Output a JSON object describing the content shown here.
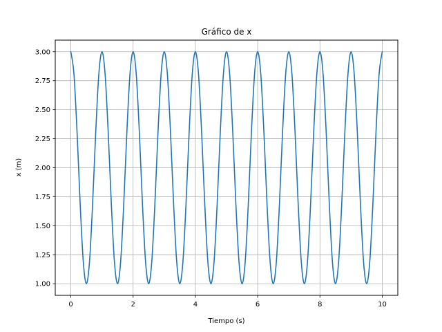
{
  "chart_data": {
    "type": "line",
    "title": "Gráfico de x",
    "xlabel": "Tiempo (s)",
    "ylabel": "x (m)",
    "xlim": [
      -0.5,
      10.5
    ],
    "ylim": [
      0.9,
      3.1
    ],
    "grid": true,
    "x_ticks": [
      0,
      2,
      4,
      6,
      8,
      10
    ],
    "x_tick_labels": [
      "0",
      "2",
      "4",
      "6",
      "8",
      "10"
    ],
    "y_ticks": [
      1.0,
      1.25,
      1.5,
      1.75,
      2.0,
      2.25,
      2.5,
      2.75,
      3.0
    ],
    "y_tick_labels": [
      "1.00",
      "1.25",
      "1.50",
      "1.75",
      "2.00",
      "2.25",
      "2.50",
      "2.75",
      "3.00"
    ],
    "series": [
      {
        "color": "#1f77b4",
        "x": [
          0,
          0.1,
          0.2,
          0.3,
          0.4,
          0.5,
          0.6,
          0.7,
          0.8,
          0.9,
          1.0,
          1.1,
          1.2,
          1.3,
          1.4,
          1.5,
          1.6,
          1.7,
          1.8,
          1.9,
          2.0,
          2.1,
          2.2,
          2.3,
          2.4,
          2.5,
          2.6,
          2.7,
          2.8,
          2.9,
          3.0,
          3.1,
          3.2,
          3.3,
          3.4,
          3.5,
          3.6,
          3.7,
          3.8,
          3.9,
          4.0,
          4.1,
          4.2,
          4.3,
          4.4,
          4.5,
          4.6,
          4.7,
          4.8,
          4.9,
          5.0,
          5.1,
          5.2,
          5.3,
          5.4,
          5.5,
          5.6,
          5.7,
          5.8,
          5.9,
          6.0,
          6.1,
          6.2,
          6.3,
          6.4,
          6.5,
          6.6,
          6.7,
          6.8,
          6.9,
          7.0,
          7.1,
          7.2,
          7.3,
          7.4,
          7.5,
          7.6,
          7.7,
          7.8,
          7.9,
          8.0,
          8.1,
          8.2,
          8.3,
          8.4,
          8.5,
          8.6,
          8.7,
          8.8,
          8.9,
          9.0,
          9.1,
          9.2,
          9.3,
          9.4,
          9.5,
          9.6,
          9.7,
          9.8,
          9.9,
          10.0
        ],
        "y": [
          3.0,
          2.809,
          2.309,
          1.691,
          1.191,
          1.0,
          1.191,
          1.691,
          2.309,
          2.809,
          3.0,
          2.809,
          2.309,
          1.691,
          1.191,
          1.0,
          1.191,
          1.691,
          2.309,
          2.809,
          3.0,
          2.809,
          2.309,
          1.691,
          1.191,
          1.0,
          1.191,
          1.691,
          2.309,
          2.809,
          3.0,
          2.809,
          2.309,
          1.691,
          1.191,
          1.0,
          1.191,
          1.691,
          2.309,
          2.809,
          3.0,
          2.809,
          2.309,
          1.691,
          1.191,
          1.0,
          1.191,
          1.691,
          2.309,
          2.809,
          3.0,
          2.809,
          2.309,
          1.691,
          1.191,
          1.0,
          1.191,
          1.691,
          2.309,
          2.809,
          3.0,
          2.809,
          2.309,
          1.691,
          1.191,
          1.0,
          1.191,
          1.691,
          2.309,
          2.809,
          3.0,
          2.809,
          2.309,
          1.691,
          1.191,
          1.0,
          1.191,
          1.691,
          2.309,
          2.809,
          3.0,
          2.809,
          2.309,
          1.691,
          1.191,
          1.0,
          1.191,
          1.691,
          2.309,
          2.809,
          3.0,
          2.809,
          2.309,
          1.691,
          1.191,
          1.0,
          1.191,
          1.691,
          2.309,
          2.809,
          3.0
        ]
      }
    ]
  }
}
